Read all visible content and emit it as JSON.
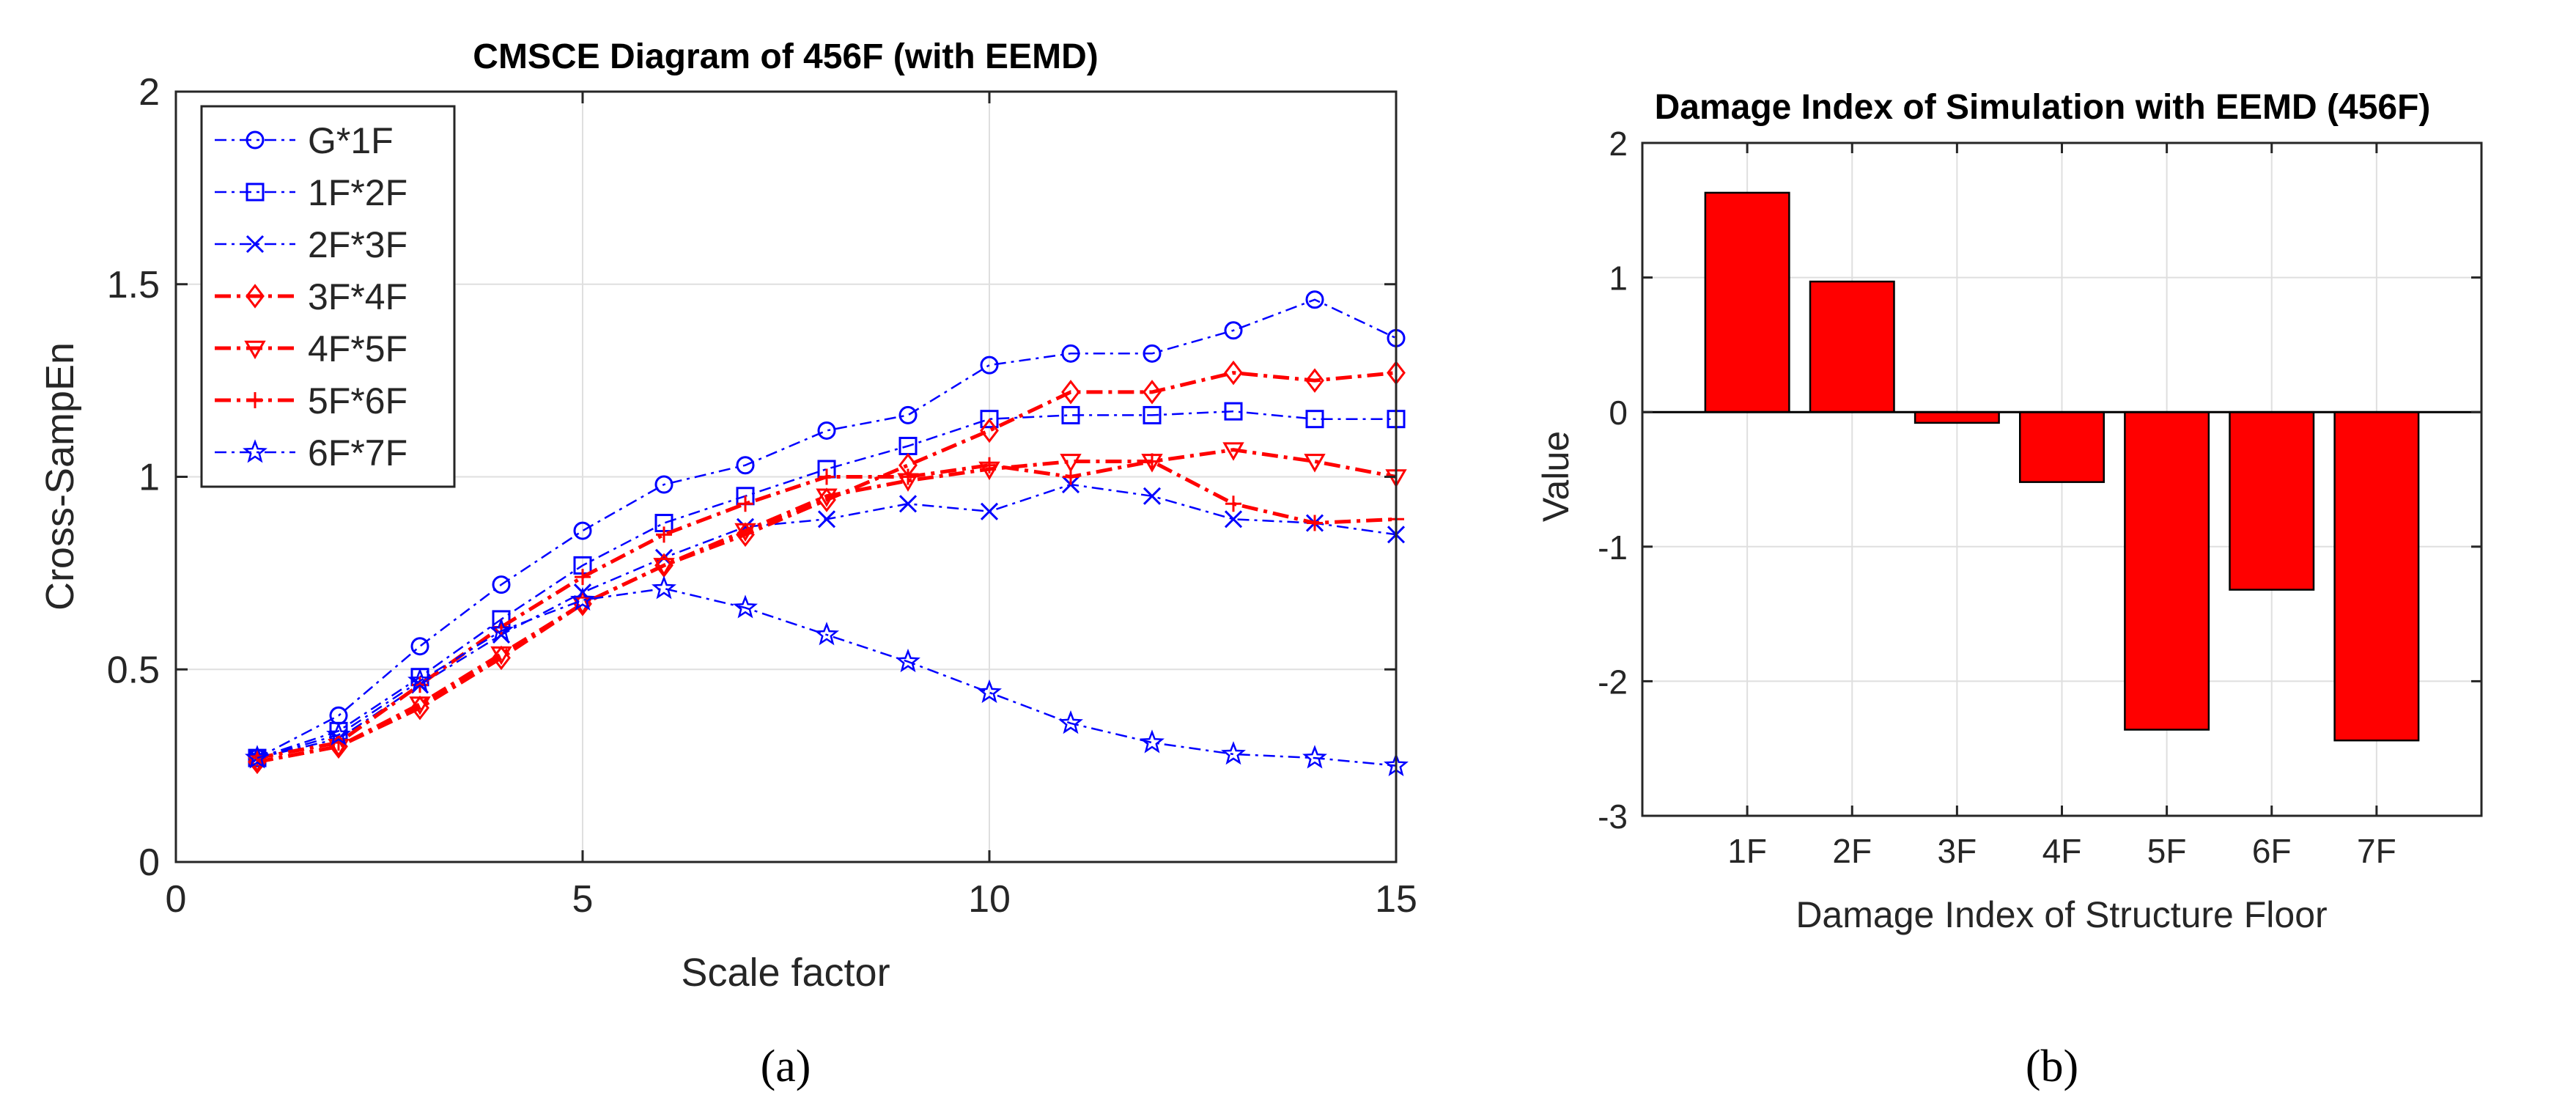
{
  "chart_data": [
    {
      "type": "line",
      "title": "CMSCE Diagram of 456F (with EEMD)",
      "xlabel": "Scale factor",
      "ylabel": "Cross-SampEn",
      "xlim": [
        0,
        15
      ],
      "ylim": [
        0,
        2
      ],
      "xticks": [
        0,
        5,
        10,
        15
      ],
      "xtick_labels": [
        "0",
        "5",
        "10",
        "15"
      ],
      "yticks": [
        0,
        0.5,
        1,
        1.5,
        2
      ],
      "ytick_labels": [
        "0",
        "0.5",
        "1",
        "1.5",
        "2"
      ],
      "grid": true,
      "legend": "top-left",
      "x": [
        1,
        2,
        3,
        4,
        5,
        6,
        7,
        8,
        9,
        10,
        11,
        12,
        13,
        14,
        15
      ],
      "series": [
        {
          "name": "G*1F",
          "color": "#0000ff",
          "marker": "circle",
          "values": [
            0.27,
            0.38,
            0.56,
            0.72,
            0.86,
            0.98,
            1.03,
            1.12,
            1.16,
            1.29,
            1.32,
            1.32,
            1.38,
            1.46,
            1.36
          ]
        },
        {
          "name": "1F*2F",
          "color": "#0000ff",
          "marker": "square",
          "values": [
            0.27,
            0.34,
            0.48,
            0.63,
            0.77,
            0.88,
            0.95,
            1.02,
            1.08,
            1.15,
            1.16,
            1.16,
            1.17,
            1.15,
            1.15
          ]
        },
        {
          "name": "2F*3F",
          "color": "#0000ff",
          "marker": "x",
          "values": [
            0.27,
            0.32,
            0.46,
            0.59,
            0.7,
            0.79,
            0.87,
            0.89,
            0.93,
            0.91,
            0.98,
            0.95,
            0.89,
            0.88,
            0.85
          ]
        },
        {
          "name": "3F*4F",
          "color": "#ff0000",
          "marker": "diamond",
          "values": [
            0.26,
            0.3,
            0.4,
            0.53,
            0.67,
            0.77,
            0.85,
            0.94,
            1.03,
            1.12,
            1.22,
            1.22,
            1.27,
            1.25,
            1.27
          ]
        },
        {
          "name": "4F*5F",
          "color": "#ff0000",
          "marker": "triangle-down",
          "values": [
            0.26,
            0.3,
            0.41,
            0.54,
            0.67,
            0.77,
            0.86,
            0.95,
            0.99,
            1.02,
            1.04,
            1.04,
            1.07,
            1.04,
            1.0
          ]
        },
        {
          "name": "5F*6F",
          "color": "#ff0000",
          "marker": "plus",
          "values": [
            0.27,
            0.31,
            0.46,
            0.61,
            0.74,
            0.85,
            0.93,
            1.0,
            1.0,
            1.03,
            1.0,
            1.04,
            0.93,
            0.88,
            0.89
          ]
        },
        {
          "name": "6F*7F",
          "color": "#0000ff",
          "marker": "star",
          "values": [
            0.27,
            0.33,
            0.47,
            0.6,
            0.68,
            0.71,
            0.66,
            0.59,
            0.52,
            0.44,
            0.36,
            0.31,
            0.28,
            0.27,
            0.25
          ]
        }
      ]
    },
    {
      "type": "bar",
      "title": "Damage Index of Simulation with EEMD (456F)",
      "xlabel": "Damage Index of Structure Floor",
      "ylabel": "Value",
      "categories": [
        "1F",
        "2F",
        "3F",
        "4F",
        "5F",
        "6F",
        "7F"
      ],
      "values": [
        1.63,
        0.97,
        -0.08,
        -0.52,
        -2.36,
        -1.32,
        -2.44
      ],
      "ylim": [
        -3,
        2
      ],
      "yticks": [
        -3,
        -2,
        -1,
        0,
        1,
        2
      ],
      "ytick_labels": [
        "-3",
        "-2",
        "-1",
        "0",
        "1",
        "2"
      ],
      "bar_color": "#ff0000",
      "grid": true
    }
  ],
  "panel_labels": [
    "(a)",
    "(b)"
  ]
}
